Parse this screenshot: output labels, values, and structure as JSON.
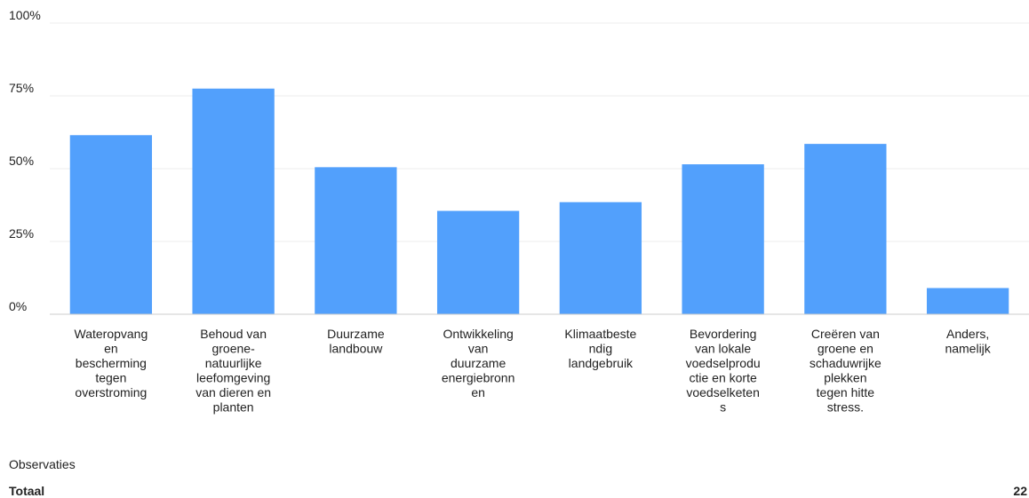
{
  "chart_data": {
    "type": "bar",
    "categories": [
      "Wateropvang en bescherming tegen overstroming",
      "Behoud van groene-natuurlijke leefomgeving van dieren en planten",
      "Duurzame landbouw",
      "Ontwikkeling van duurzame energiebronnen",
      "Klimaatbestendig landgebruik",
      "Bevordering van lokale voedselproductie en korte voedselketens",
      "Creëren van groene en schaduwrijke plekken tegen hitte stress.",
      "Anders, namelijk"
    ],
    "category_label_lines": [
      [
        "Wateropvang",
        "en",
        "bescherming",
        "tegen",
        "overstroming"
      ],
      [
        "Behoud van",
        "groene-",
        "natuurlijke",
        "leefomgeving",
        "van dieren en",
        "planten"
      ],
      [
        "Duurzame",
        "landbouw"
      ],
      [
        "Ontwikkeling",
        "van",
        "duurzame",
        "energiebronn",
        "en"
      ],
      [
        "Klimaatbeste",
        "ndig",
        "landgebruik"
      ],
      [
        "Bevordering",
        "van lokale",
        "voedselprodu",
        "ctie en korte",
        "voedselketen",
        "s"
      ],
      [
        "Creëren van",
        "groene en",
        "schaduwrijke",
        "plekken",
        "tegen hitte",
        "stress."
      ],
      [
        "Anders,",
        "namelijk"
      ]
    ],
    "values": [
      61.5,
      77.5,
      50.5,
      35.5,
      38.5,
      51.5,
      58.5,
      9
    ],
    "ylim": [
      0,
      100
    ],
    "yticks": [
      0,
      25,
      50,
      75,
      100
    ],
    "ytick_labels": [
      "0%",
      "25%",
      "50%",
      "75%",
      "100%"
    ],
    "grid": true,
    "bar_color": "#52a0fc",
    "grid_color": "#eeeeee",
    "axis_color": "#cccccc"
  },
  "footer": {
    "observations_label": "Observaties",
    "total_label": "Totaal",
    "total_value": "22"
  }
}
